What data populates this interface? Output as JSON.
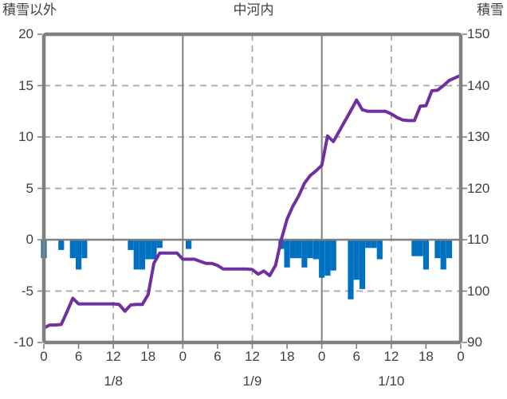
{
  "page": {
    "background": "#FFFFFF"
  },
  "chart_data": {
    "type": "combo",
    "title": "中河内",
    "left_axis": {
      "label": "積雪以外",
      "max": 20,
      "min": -10,
      "ticks": [
        20,
        15,
        10,
        5,
        0,
        -5,
        -10
      ]
    },
    "right_axis": {
      "label": "積雪",
      "max": 150,
      "min": 90,
      "ticks": [
        150,
        140,
        130,
        120,
        110,
        100,
        90
      ]
    },
    "x_axis": {
      "total_hours": 72,
      "hour_tick_step": 6,
      "hour_tick_labels": [
        "0",
        "6",
        "12",
        "18",
        "0",
        "6",
        "12",
        "18",
        "0",
        "6",
        "12",
        "18",
        "0"
      ],
      "date_labels": [
        {
          "text": "1/8",
          "center_hour": 12
        },
        {
          "text": "1/9",
          "center_hour": 36
        },
        {
          "text": "1/10",
          "center_hour": 60
        }
      ]
    },
    "series": [
      {
        "name": "hourly-bars",
        "type": "bar",
        "axis": "left",
        "color": "#0070C0",
        "points": [
          [
            0,
            -1.8
          ],
          [
            3,
            -1.0
          ],
          [
            5,
            -1.8
          ],
          [
            6,
            -2.9
          ],
          [
            7,
            -1.8
          ],
          [
            15,
            -1.0
          ],
          [
            16,
            -2.9
          ],
          [
            17,
            -2.9
          ],
          [
            18,
            -1.9
          ],
          [
            19,
            -1.9
          ],
          [
            20,
            -0.8
          ],
          [
            25,
            -0.9
          ],
          [
            41,
            -0.9
          ],
          [
            42,
            -2.7
          ],
          [
            43,
            -1.8
          ],
          [
            44,
            -1.8
          ],
          [
            45,
            -2.7
          ],
          [
            46,
            -1.8
          ],
          [
            47,
            -1.9
          ],
          [
            48,
            -3.7
          ],
          [
            49,
            -3.5
          ],
          [
            50,
            -3.0
          ],
          [
            53,
            -5.8
          ],
          [
            54,
            -3.9
          ],
          [
            55,
            -4.8
          ],
          [
            56,
            -0.8
          ],
          [
            57,
            -0.8
          ],
          [
            58,
            -1.9
          ],
          [
            64,
            -1.6
          ],
          [
            65,
            -1.6
          ],
          [
            66,
            -2.9
          ],
          [
            68,
            -1.8
          ],
          [
            69,
            -2.9
          ],
          [
            70,
            -1.8
          ]
        ]
      },
      {
        "name": "snow-depth-line",
        "type": "line",
        "axis": "right",
        "color": "#7030A0",
        "start_hour": 0,
        "values": [
          92.8,
          93.4,
          93.4,
          93.5,
          96.0,
          98.6,
          97.5,
          97.5,
          97.5,
          97.5,
          97.5,
          97.5,
          97.5,
          97.4,
          96.1,
          97.3,
          97.4,
          97.4,
          99.3,
          105.4,
          107.4,
          107.4,
          107.4,
          107.4,
          106.2,
          106.2,
          106.2,
          105.8,
          105.4,
          105.4,
          105.0,
          104.3,
          104.3,
          104.3,
          104.3,
          104.3,
          104.2,
          103.3,
          103.9,
          103.0,
          105.0,
          110.0,
          114.0,
          116.5,
          118.5,
          121.0,
          122.5,
          123.4,
          124.5,
          130.2,
          129.1,
          131.1,
          133.1,
          135.1,
          137.2,
          135.3,
          135.0,
          135.0,
          135.0,
          135.0,
          134.5,
          133.8,
          133.3,
          133.2,
          133.2,
          136.0,
          136.1,
          139.0,
          139.1,
          140.0,
          141.0,
          141.5,
          142.0
        ]
      }
    ],
    "style": {
      "grid_dash_color": "#A6A6A6",
      "grid_solid_color": "#808080",
      "zero_line_color": "#808080",
      "border_color": "#808080",
      "text_color": "#404040"
    }
  }
}
